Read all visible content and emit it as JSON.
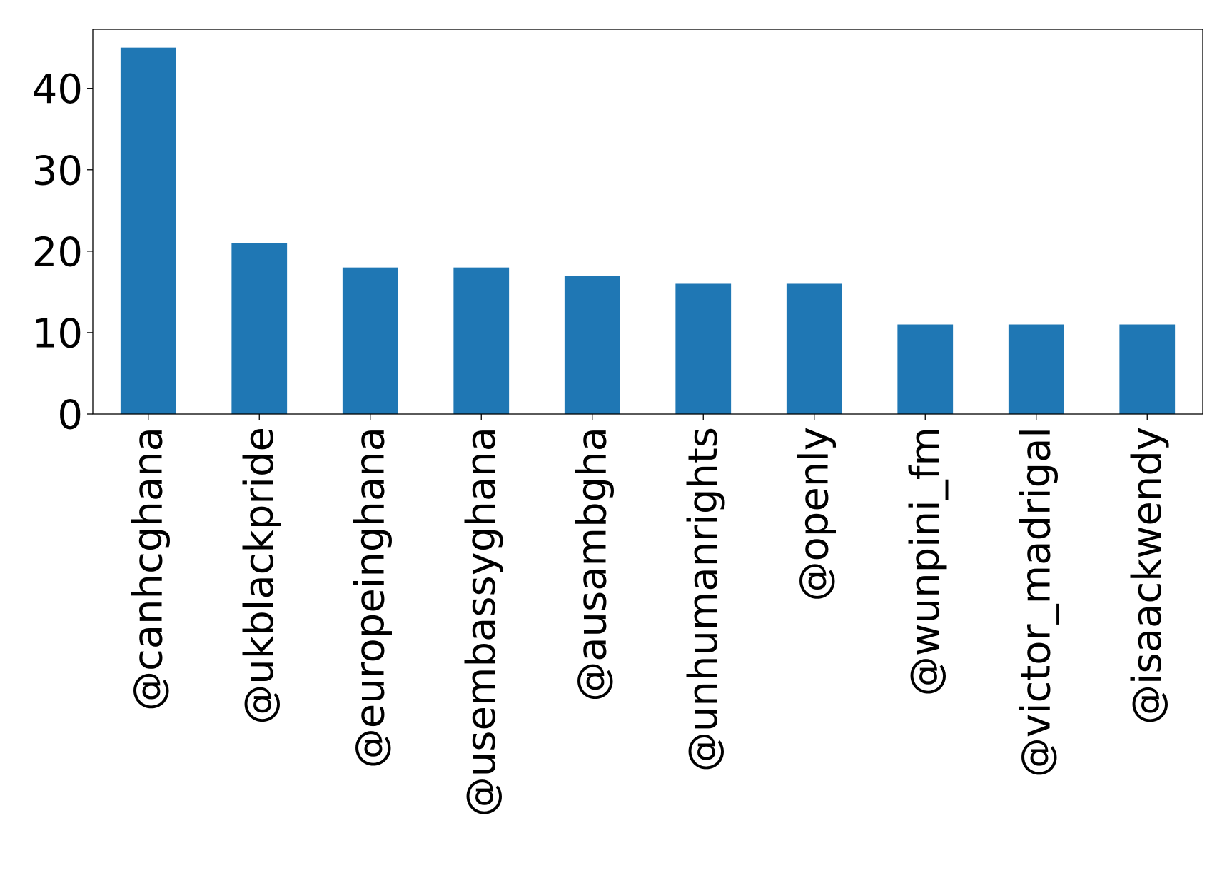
{
  "chart_data": {
    "type": "bar",
    "title": "",
    "xlabel": "",
    "ylabel": "",
    "categories": [
      "@canhcghana",
      "@ukblackpride",
      "@europeinghana",
      "@usembassyghana",
      "@ausambgha",
      "@unhumanrights",
      "@openly",
      "@wunpini_fm",
      "@victor_madrigal",
      "@isaackwendy"
    ],
    "values": [
      45,
      21,
      18,
      18,
      17,
      16,
      16,
      11,
      11,
      11
    ],
    "ylim": [
      0,
      47.25
    ],
    "yticks": [
      0,
      10,
      20,
      30,
      40
    ],
    "grid": false,
    "legend": "none",
    "bar_color": "#1f77b4"
  }
}
